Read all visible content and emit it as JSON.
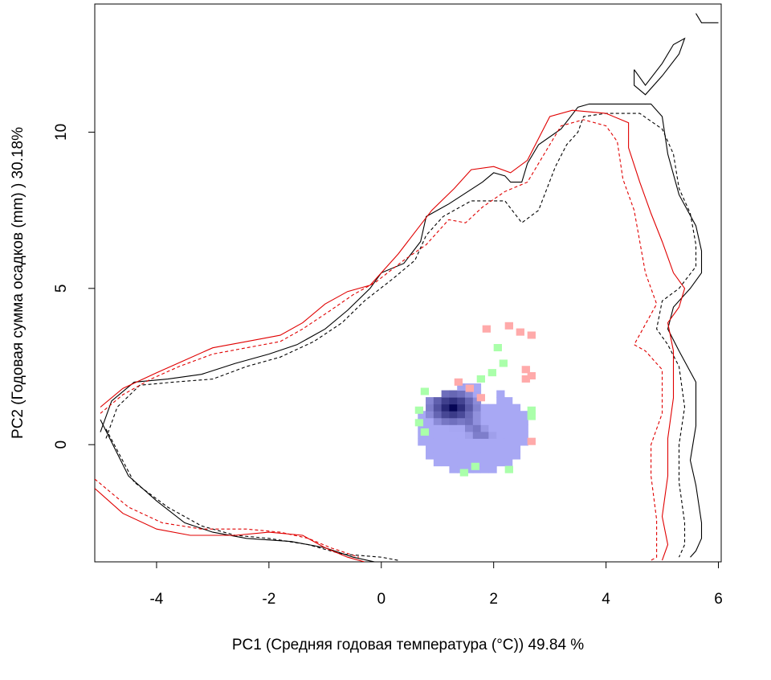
{
  "chart_data": {
    "type": "scatter",
    "description_free": true,
    "xlabel": "PC1 (Средняя годовая температура (°C)) 49.84 %",
    "ylabel": "PC2 (Годовая сумма осадков  (mm) ) 30.18%",
    "xlim": [
      -5.1,
      6.05
    ],
    "ylim": [
      -3.75,
      14.1
    ],
    "x_ticks": [
      -4,
      -2,
      0,
      2,
      4,
      6
    ],
    "x_tick_labels": [
      "-4",
      "-2",
      "0",
      "2",
      "4",
      "6"
    ],
    "y_ticks": [
      0,
      5,
      10
    ],
    "y_tick_labels": [
      "0",
      "5",
      "10"
    ],
    "grid": false,
    "legend": "none",
    "colors": {
      "contour_black": "#000000",
      "contour_red": "#e00000",
      "cell_pink": "#ffaaaa",
      "cell_green": "#aaffaa",
      "cell_blue": "#a8a8f4",
      "density_dark": "#000050"
    },
    "contours": [
      {
        "color": "black",
        "dash": "solid",
        "points": [
          [
            -5.0,
            0.4
          ],
          [
            -4.8,
            1.4
          ],
          [
            -4.4,
            2.0
          ],
          [
            -3.8,
            2.1
          ],
          [
            -3.2,
            2.25
          ],
          [
            -2.6,
            2.6
          ],
          [
            -2.0,
            2.9
          ],
          [
            -1.5,
            3.2
          ],
          [
            -1.0,
            3.7
          ],
          [
            -0.6,
            4.3
          ],
          [
            -0.2,
            5.0
          ],
          [
            0.0,
            5.5
          ],
          [
            0.4,
            5.8
          ],
          [
            0.7,
            6.5
          ],
          [
            0.8,
            7.3
          ],
          [
            1.2,
            7.7
          ],
          [
            1.8,
            8.4
          ],
          [
            2.0,
            8.7
          ],
          [
            2.2,
            8.6
          ],
          [
            2.3,
            8.4
          ],
          [
            2.5,
            8.4
          ],
          [
            2.6,
            9.0
          ],
          [
            2.8,
            9.6
          ],
          [
            3.2,
            10.1
          ],
          [
            3.5,
            10.8
          ],
          [
            3.7,
            10.9
          ],
          [
            4.2,
            10.9
          ],
          [
            4.8,
            10.9
          ],
          [
            5.0,
            10.5
          ],
          [
            5.1,
            9.3
          ],
          [
            5.3,
            8.0
          ],
          [
            5.6,
            7.0
          ],
          [
            5.7,
            6.2
          ],
          [
            5.7,
            5.5
          ],
          [
            5.5,
            5.0
          ],
          [
            5.2,
            4.4
          ],
          [
            5.1,
            3.7
          ],
          [
            5.3,
            3.0
          ],
          [
            5.6,
            2.0
          ],
          [
            5.6,
            0.6
          ],
          [
            5.5,
            -0.5
          ],
          [
            5.6,
            -1.3
          ],
          [
            5.7,
            -2.5
          ],
          [
            5.7,
            -3.0
          ],
          [
            5.6,
            -3.4
          ],
          [
            5.5,
            -3.6
          ]
        ]
      },
      {
        "color": "black",
        "dash": "dashed",
        "points": [
          [
            -4.9,
            0.2
          ],
          [
            -4.7,
            1.2
          ],
          [
            -4.3,
            1.9
          ],
          [
            -3.7,
            2.0
          ],
          [
            -3.0,
            2.1
          ],
          [
            -2.4,
            2.5
          ],
          [
            -1.8,
            2.8
          ],
          [
            -1.2,
            3.3
          ],
          [
            -0.7,
            3.9
          ],
          [
            -0.3,
            4.6
          ],
          [
            0.2,
            5.3
          ],
          [
            0.6,
            5.9
          ],
          [
            0.8,
            6.7
          ],
          [
            1.1,
            7.3
          ],
          [
            1.6,
            7.8
          ],
          [
            2.2,
            7.8
          ],
          [
            2.5,
            7.1
          ],
          [
            2.8,
            7.5
          ],
          [
            3.1,
            8.9
          ],
          [
            3.3,
            9.6
          ],
          [
            3.5,
            10.0
          ],
          [
            3.6,
            10.5
          ],
          [
            4.0,
            10.6
          ],
          [
            4.6,
            10.6
          ],
          [
            5.0,
            10.1
          ],
          [
            5.2,
            9.3
          ],
          [
            5.3,
            8.2
          ],
          [
            5.5,
            7.4
          ],
          [
            5.6,
            6.4
          ],
          [
            5.6,
            5.7
          ],
          [
            5.3,
            5.0
          ],
          [
            5.0,
            4.6
          ],
          [
            4.9,
            3.7
          ],
          [
            5.1,
            3.2
          ],
          [
            5.3,
            2.5
          ],
          [
            5.4,
            1.2
          ],
          [
            5.3,
            0.0
          ],
          [
            5.3,
            -1.2
          ],
          [
            5.4,
            -2.5
          ],
          [
            5.4,
            -3.2
          ],
          [
            5.3,
            -3.6
          ]
        ]
      },
      {
        "color": "red",
        "dash": "solid",
        "points": [
          [
            -5.0,
            1.2
          ],
          [
            -4.6,
            1.8
          ],
          [
            -4.0,
            2.3
          ],
          [
            -3.5,
            2.7
          ],
          [
            -3.0,
            3.1
          ],
          [
            -2.4,
            3.3
          ],
          [
            -1.8,
            3.5
          ],
          [
            -1.4,
            3.9
          ],
          [
            -1.0,
            4.5
          ],
          [
            -0.6,
            4.9
          ],
          [
            -0.2,
            5.1
          ],
          [
            0.0,
            5.5
          ],
          [
            0.3,
            6.1
          ],
          [
            0.6,
            6.8
          ],
          [
            0.9,
            7.5
          ],
          [
            1.3,
            8.2
          ],
          [
            1.6,
            8.8
          ],
          [
            2.0,
            8.9
          ],
          [
            2.3,
            8.7
          ],
          [
            2.6,
            9.1
          ],
          [
            2.8,
            9.8
          ],
          [
            3.0,
            10.5
          ],
          [
            3.4,
            10.7
          ],
          [
            4.0,
            10.6
          ],
          [
            4.4,
            10.3
          ],
          [
            4.4,
            9.5
          ],
          [
            4.6,
            8.4
          ],
          [
            4.8,
            7.4
          ],
          [
            5.0,
            6.5
          ],
          [
            5.2,
            5.5
          ],
          [
            5.4,
            5.0
          ],
          [
            5.3,
            4.4
          ],
          [
            5.1,
            3.9
          ],
          [
            5.2,
            3.0
          ],
          [
            5.2,
            1.5
          ],
          [
            5.1,
            0.2
          ],
          [
            5.1,
            -1.0
          ],
          [
            5.0,
            -2.3
          ],
          [
            5.1,
            -3.2
          ],
          [
            5.0,
            -3.7
          ]
        ]
      },
      {
        "color": "red",
        "dash": "dashed",
        "points": [
          [
            -5.0,
            1.0
          ],
          [
            -4.6,
            1.6
          ],
          [
            -4.1,
            2.1
          ],
          [
            -3.6,
            2.5
          ],
          [
            -3.0,
            2.9
          ],
          [
            -2.4,
            3.1
          ],
          [
            -1.8,
            3.3
          ],
          [
            -1.4,
            3.7
          ],
          [
            -0.9,
            4.3
          ],
          [
            -0.5,
            4.8
          ],
          [
            -0.1,
            5.2
          ],
          [
            0.4,
            5.9
          ],
          [
            0.8,
            6.4
          ],
          [
            1.2,
            7.2
          ],
          [
            1.5,
            7.1
          ],
          [
            1.8,
            7.6
          ],
          [
            2.2,
            8.1
          ],
          [
            2.6,
            8.4
          ],
          [
            2.9,
            9.3
          ],
          [
            3.2,
            10.2
          ],
          [
            3.6,
            10.4
          ],
          [
            4.0,
            10.2
          ],
          [
            4.2,
            9.7
          ],
          [
            4.3,
            8.5
          ],
          [
            4.5,
            7.5
          ],
          [
            4.6,
            6.5
          ],
          [
            4.7,
            5.5
          ],
          [
            4.9,
            4.5
          ],
          [
            4.5,
            3.2
          ],
          [
            4.7,
            3.0
          ],
          [
            5.0,
            2.4
          ],
          [
            5.0,
            1.0
          ],
          [
            4.8,
            0.0
          ],
          [
            4.8,
            -1.0
          ],
          [
            4.9,
            -2.4
          ],
          [
            4.9,
            -3.6
          ],
          [
            4.8,
            -3.7
          ]
        ]
      },
      {
        "color": "black",
        "dash": "solid",
        "points": [
          [
            -5.0,
            0.8
          ],
          [
            -4.5,
            -1.0
          ],
          [
            -4.0,
            -1.8
          ],
          [
            -3.5,
            -2.5
          ],
          [
            -3.0,
            -2.8
          ],
          [
            -2.4,
            -3.0
          ],
          [
            -1.6,
            -3.1
          ],
          [
            -1.0,
            -3.3
          ],
          [
            -0.5,
            -3.6
          ],
          [
            0.0,
            -3.8
          ]
        ]
      },
      {
        "color": "black",
        "dash": "dashed",
        "points": [
          [
            -4.9,
            0.5
          ],
          [
            -4.4,
            -1.2
          ],
          [
            -3.8,
            -2.0
          ],
          [
            -3.2,
            -2.6
          ],
          [
            -2.6,
            -2.9
          ],
          [
            -2.0,
            -3.0
          ],
          [
            -1.3,
            -3.2
          ],
          [
            -0.7,
            -3.5
          ],
          [
            0.0,
            -3.6
          ],
          [
            0.3,
            -3.7
          ]
        ]
      },
      {
        "color": "red",
        "dash": "solid",
        "points": [
          [
            -5.1,
            -1.4
          ],
          [
            -4.6,
            -2.2
          ],
          [
            -4.0,
            -2.7
          ],
          [
            -3.4,
            -2.9
          ],
          [
            -2.6,
            -2.9
          ],
          [
            -2.0,
            -2.8
          ],
          [
            -1.4,
            -2.9
          ],
          [
            -1.0,
            -3.3
          ],
          [
            -0.6,
            -3.6
          ],
          [
            -0.3,
            -3.75
          ]
        ]
      },
      {
        "color": "red",
        "dash": "dashed",
        "points": [
          [
            -5.1,
            -1.1
          ],
          [
            -4.5,
            -2.0
          ],
          [
            -3.9,
            -2.5
          ],
          [
            -3.2,
            -2.7
          ],
          [
            -2.4,
            -2.7
          ],
          [
            -1.8,
            -2.8
          ],
          [
            -1.3,
            -3.0
          ],
          [
            -0.9,
            -3.3
          ],
          [
            -0.4,
            -3.6
          ]
        ]
      },
      {
        "color": "black",
        "dash": "solid",
        "points": [
          [
            4.5,
            12.0
          ],
          [
            4.7,
            11.5
          ],
          [
            5.0,
            12.2
          ],
          [
            5.2,
            12.8
          ],
          [
            5.4,
            13.0
          ],
          [
            5.3,
            12.5
          ],
          [
            5.0,
            11.8
          ],
          [
            4.7,
            11.2
          ],
          [
            4.5,
            11.5
          ],
          [
            4.5,
            12.0
          ]
        ]
      },
      {
        "color": "black",
        "dash": "solid",
        "points": [
          [
            5.6,
            13.8
          ],
          [
            5.7,
            13.5
          ],
          [
            6.0,
            13.5
          ]
        ]
      }
    ],
    "cells_pink": [
      [
        1.8,
        3.6
      ],
      [
        2.2,
        3.7
      ],
      [
        2.4,
        3.5
      ],
      [
        2.6,
        3.4
      ],
      [
        2.5,
        2.3
      ],
      [
        2.5,
        2.0
      ],
      [
        2.6,
        2.1
      ],
      [
        1.3,
        1.9
      ],
      [
        1.5,
        1.7
      ],
      [
        1.7,
        1.4
      ],
      [
        2.6,
        0.0
      ]
    ],
    "cells_green": [
      [
        2.0,
        3.0
      ],
      [
        2.1,
        2.5
      ],
      [
        1.9,
        2.2
      ],
      [
        1.7,
        2.0
      ],
      [
        0.7,
        1.6
      ],
      [
        0.6,
        1.0
      ],
      [
        0.6,
        0.6
      ],
      [
        0.7,
        0.3
      ],
      [
        2.6,
        0.8
      ],
      [
        2.6,
        1.0
      ],
      [
        1.4,
        -1.0
      ],
      [
        1.6,
        -0.8
      ],
      [
        2.2,
        -0.9
      ]
    ],
    "density_peak": [
      1.2,
      1.1
    ]
  }
}
